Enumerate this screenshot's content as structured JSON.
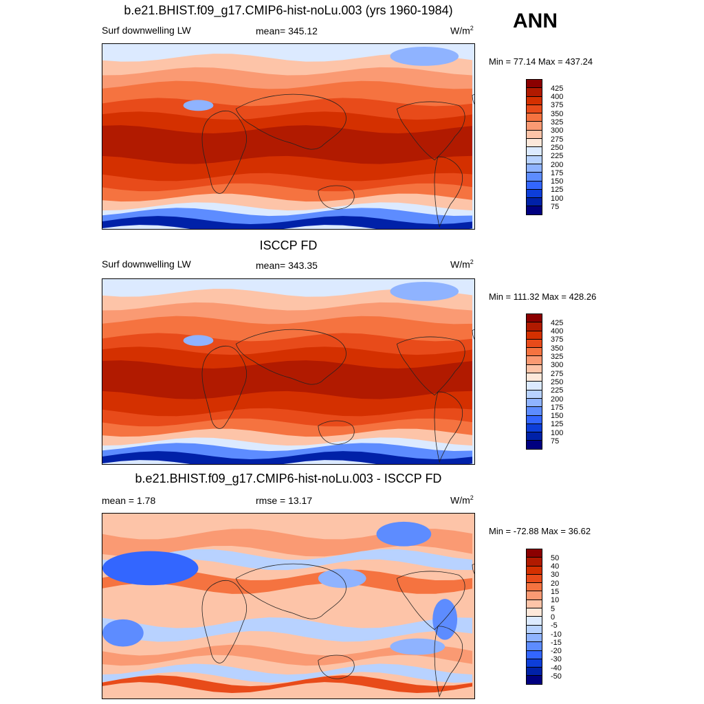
{
  "season": "ANN",
  "panels": [
    {
      "title": "b.e21.BHIST.f09_g17.CMIP6-hist-noLu.003 (yrs 1960-1984)",
      "left": "Surf downwelling LW",
      "center": "mean= 345.12",
      "units": "W/m",
      "units_sup": "2",
      "minmax": "Min =  77.14 Max = 437.24",
      "map_type": "model",
      "colorbar": {
        "labels": [
          "425",
          "400",
          "375",
          "350",
          "325",
          "300",
          "275",
          "250",
          "225",
          "200",
          "175",
          "150",
          "125",
          "100",
          "75"
        ],
        "colors": [
          "#8b0000",
          "#b11a00",
          "#d43000",
          "#e84b1a",
          "#f57340",
          "#fa9a73",
          "#fdc4a8",
          "#fde8da",
          "#dceaff",
          "#b8d2ff",
          "#8fb3ff",
          "#5d8cff",
          "#3366ff",
          "#0d3ed9",
          "#0021a8",
          "#000080"
        ]
      }
    },
    {
      "title": "ISCCP FD",
      "left": "Surf downwelling LW",
      "center": "mean= 343.35",
      "units": "W/m",
      "units_sup": "2",
      "minmax": "Min = 111.32 Max = 428.26",
      "map_type": "obs",
      "colorbar": {
        "labels": [
          "425",
          "400",
          "375",
          "350",
          "325",
          "300",
          "275",
          "250",
          "225",
          "200",
          "175",
          "150",
          "125",
          "100",
          "75"
        ],
        "colors": [
          "#8b0000",
          "#b11a00",
          "#d43000",
          "#e84b1a",
          "#f57340",
          "#fa9a73",
          "#fdc4a8",
          "#fde8da",
          "#dceaff",
          "#b8d2ff",
          "#8fb3ff",
          "#5d8cff",
          "#3366ff",
          "#0d3ed9",
          "#0021a8",
          "#000080"
        ]
      }
    },
    {
      "title": "b.e21.BHIST.f09_g17.CMIP6-hist-noLu.003 - ISCCP FD",
      "left": "mean =   1.78",
      "center": "rmse =  13.17",
      "units": "W/m",
      "units_sup": "2",
      "minmax": "Min = -72.88 Max =  36.62",
      "map_type": "diff",
      "colorbar": {
        "labels": [
          "50",
          "40",
          "30",
          "20",
          "15",
          "10",
          "5",
          "0",
          "-5",
          "-10",
          "-15",
          "-20",
          "-30",
          "-40",
          "-50"
        ],
        "colors": [
          "#8b0000",
          "#b11a00",
          "#d43000",
          "#e84b1a",
          "#f57340",
          "#fa9a73",
          "#fdc4a8",
          "#fde8da",
          "#dceaff",
          "#b8d2ff",
          "#8fb3ff",
          "#5d8cff",
          "#3366ff",
          "#0d3ed9",
          "#0021a8",
          "#000080"
        ]
      }
    }
  ]
}
